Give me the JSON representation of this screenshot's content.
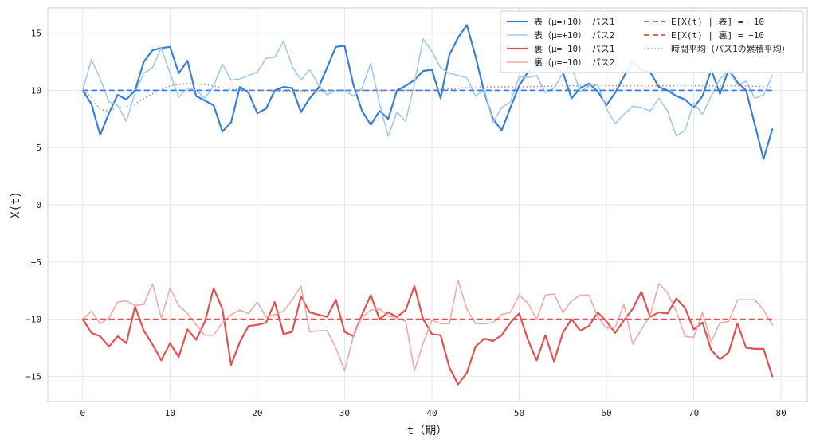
{
  "chart_data": {
    "type": "line",
    "title": "",
    "xlabel": "t（期）",
    "ylabel": "X(t)",
    "xlim": [
      -4,
      83
    ],
    "ylim": [
      -17.2,
      17.2
    ],
    "xticks": [
      0,
      10,
      20,
      30,
      40,
      50,
      60,
      70,
      80
    ],
    "yticks": [
      -15,
      -10,
      -5,
      0,
      5,
      10,
      15
    ],
    "ytick_labels": [
      "−15",
      "−10",
      "−5",
      "0",
      "5",
      "10",
      "15"
    ],
    "grid": true,
    "legend_position": "top-right",
    "series": [
      {
        "name": "表（μ=+10） パス1",
        "color": "#3a7fd5",
        "style": "solid",
        "width": 2.2,
        "x": [
          0,
          1,
          2,
          3,
          4,
          5,
          6,
          7,
          8,
          9,
          10,
          11,
          12,
          13,
          14,
          15,
          16,
          17,
          18,
          19,
          20,
          21,
          22,
          23,
          24,
          25,
          26,
          27,
          28,
          29,
          30,
          31,
          32,
          33,
          34,
          35,
          36,
          37,
          38,
          39,
          40,
          41,
          42,
          43,
          44,
          45,
          46,
          47,
          48,
          49,
          50,
          51,
          52,
          53,
          54,
          55,
          56,
          57,
          58,
          59,
          60,
          61,
          62,
          63,
          64,
          65,
          66,
          67,
          68,
          69,
          70,
          71,
          72,
          73,
          74,
          75,
          76,
          77,
          78,
          79
        ],
        "y": [
          10,
          8.8,
          6.1,
          8,
          9.6,
          9.2,
          10,
          12.5,
          13.5,
          13.7,
          13.8,
          11.5,
          12.6,
          9.5,
          9.1,
          8.7,
          6.4,
          7.2,
          10.3,
          9.8,
          8,
          8.4,
          10,
          10.3,
          10.2,
          8.1,
          9.3,
          10.2,
          12,
          13.8,
          13.9,
          10.5,
          8.2,
          7,
          8.2,
          7.5,
          10,
          10.4,
          10.9,
          11.7,
          11.8,
          9.3,
          13.1,
          14.6,
          15.7,
          13,
          9.8,
          7.5,
          6.5,
          8.5,
          10.4,
          11.6,
          12,
          12.4,
          11.9,
          11.6,
          9.3,
          10.2,
          10.6,
          9.9,
          8.7,
          9.8,
          11.2,
          12.6,
          11.8,
          11.6,
          10.3,
          10,
          9.5,
          9.2,
          8.5,
          9.5,
          11.8,
          9.7,
          11.8,
          10.7,
          10,
          7,
          4,
          6.6
        ]
      },
      {
        "name": "表（μ=+10） パス2",
        "color": "#a6c8ea",
        "style": "solid",
        "width": 1.6,
        "x": [
          0,
          1,
          2,
          3,
          4,
          5,
          6,
          7,
          8,
          9,
          10,
          11,
          12,
          13,
          14,
          15,
          16,
          17,
          18,
          19,
          20,
          21,
          22,
          23,
          24,
          25,
          26,
          27,
          28,
          29,
          30,
          31,
          32,
          33,
          34,
          35,
          36,
          37,
          38,
          39,
          40,
          41,
          42,
          43,
          44,
          45,
          46,
          47,
          48,
          49,
          50,
          51,
          52,
          53,
          54,
          55,
          56,
          57,
          58,
          59,
          60,
          61,
          62,
          63,
          64,
          65,
          66,
          67,
          68,
          69,
          70,
          71,
          72,
          73,
          74,
          75,
          76,
          77,
          78,
          79
        ],
        "y": [
          10,
          12.7,
          11,
          9,
          8.7,
          7.3,
          9.8,
          11.5,
          12,
          13.7,
          11.5,
          9.4,
          10.2,
          10,
          9.3,
          10.4,
          12.3,
          10.9,
          11,
          11.3,
          11.6,
          12.8,
          12.9,
          14.3,
          12.1,
          10.9,
          11.8,
          10.5,
          9.6,
          10,
          10,
          9.5,
          10.2,
          12.4,
          8.8,
          6,
          8.1,
          7.3,
          10.6,
          14.5,
          13.4,
          12,
          11.5,
          11.3,
          11.1,
          9.5,
          10.1,
          7.2,
          8.5,
          9,
          11.2,
          11.1,
          11.3,
          9.8,
          10.2,
          11.5,
          12,
          9.9,
          10.4,
          10.5,
          8.4,
          7.1,
          7.9,
          8.6,
          8.5,
          8.2,
          9.3,
          8.2,
          6,
          6.5,
          8.9,
          7.9,
          9.5,
          11,
          11.7,
          10.5,
          10.8,
          9.3,
          9.6,
          11.3
        ]
      },
      {
        "name": "裏（μ=−10） パス1",
        "color": "#e05252",
        "style": "solid",
        "width": 2.2,
        "x": [
          0,
          1,
          2,
          3,
          4,
          5,
          6,
          7,
          8,
          9,
          10,
          11,
          12,
          13,
          14,
          15,
          16,
          17,
          18,
          19,
          20,
          21,
          22,
          23,
          24,
          25,
          26,
          27,
          28,
          29,
          30,
          31,
          32,
          33,
          34,
          35,
          36,
          37,
          38,
          39,
          40,
          41,
          42,
          43,
          44,
          45,
          46,
          47,
          48,
          49,
          50,
          51,
          52,
          53,
          54,
          55,
          56,
          57,
          58,
          59,
          60,
          61,
          62,
          63,
          64,
          65,
          66,
          67,
          68,
          69,
          70,
          71,
          72,
          73,
          74,
          75,
          76,
          77,
          78,
          79
        ],
        "y": [
          -10,
          -11.2,
          -11.5,
          -12.4,
          -11.5,
          -12.1,
          -8.9,
          -11,
          -12.2,
          -13.6,
          -12.1,
          -13.3,
          -10.9,
          -11.8,
          -10.2,
          -7.3,
          -9.1,
          -14,
          -12,
          -10.6,
          -10.5,
          -10.3,
          -8.5,
          -11.3,
          -11.1,
          -8,
          -9.4,
          -9.6,
          -9.8,
          -8.3,
          -11.1,
          -11.5,
          -9.6,
          -7.9,
          -10,
          -9.4,
          -9.8,
          -9.2,
          -7.1,
          -10,
          -11.3,
          -11.4,
          -14.2,
          -15.7,
          -14.7,
          -12.4,
          -11.7,
          -11.9,
          -11.4,
          -10.3,
          -9.5,
          -11.8,
          -13.6,
          -11.4,
          -13.7,
          -11.2,
          -10,
          -11,
          -10.6,
          -9.4,
          -10.2,
          -11.2,
          -10.1,
          -9.1,
          -7.6,
          -9.8,
          -9.4,
          -9.5,
          -8.2,
          -9,
          -10.9,
          -10.3,
          -12.7,
          -13.5,
          -12.9,
          -10.4,
          -12.5,
          -12.6,
          -12.6,
          -15
        ]
      },
      {
        "name": "裏（μ=−10） パス2",
        "color": "#f0aaaa",
        "style": "solid",
        "width": 1.6,
        "x": [
          0,
          1,
          2,
          3,
          4,
          5,
          6,
          7,
          8,
          9,
          10,
          11,
          12,
          13,
          14,
          15,
          16,
          17,
          18,
          19,
          20,
          21,
          22,
          23,
          24,
          25,
          26,
          27,
          28,
          29,
          30,
          31,
          32,
          33,
          34,
          35,
          36,
          37,
          38,
          39,
          40,
          41,
          42,
          43,
          44,
          45,
          46,
          47,
          48,
          49,
          50,
          51,
          52,
          53,
          54,
          55,
          56,
          57,
          58,
          59,
          60,
          61,
          62,
          63,
          64,
          65,
          66,
          67,
          68,
          69,
          70,
          71,
          72,
          73,
          74,
          75,
          76,
          77,
          78,
          79
        ],
        "y": [
          -10,
          -9.3,
          -10.4,
          -9.9,
          -8.5,
          -8.4,
          -8.8,
          -8.7,
          -6.9,
          -9.9,
          -7.3,
          -8.8,
          -9.5,
          -10.5,
          -11.4,
          -11.4,
          -10.3,
          -9.6,
          -9.2,
          -9.5,
          -8.5,
          -9.8,
          -9.6,
          -9.3,
          -8.3,
          -7.1,
          -11.1,
          -11,
          -11,
          -12.5,
          -14.5,
          -11.5,
          -9.8,
          -9.2,
          -9.1,
          -9.7,
          -9.9,
          -10.2,
          -14.5,
          -12.1,
          -10.1,
          -10.4,
          -10.4,
          -6.6,
          -9.1,
          -10.4,
          -10.4,
          -10.3,
          -9.6,
          -9.4,
          -7.9,
          -8.6,
          -10,
          -7.9,
          -7.8,
          -9.4,
          -8.4,
          -7.9,
          -7.9,
          -9.8,
          -10.8,
          -10.7,
          -8.7,
          -12.2,
          -10.9,
          -9.7,
          -6.9,
          -7.7,
          -9.3,
          -11.5,
          -11.6,
          -9.4,
          -12,
          -10.3,
          -10.2,
          -8.3,
          -8.3,
          -8.3,
          -9.2,
          -10.5
        ]
      },
      {
        "name": "E[X(t) | 表] = +10",
        "color": "#3a7fd5",
        "style": "dashed",
        "width": 1.8,
        "x": [
          0,
          79
        ],
        "y": [
          10,
          10
        ]
      },
      {
        "name": "E[X(t) | 裏] = −10",
        "color": "#e05252",
        "style": "dashed",
        "width": 1.8,
        "x": [
          0,
          79
        ],
        "y": [
          -10,
          -10
        ]
      },
      {
        "name": "時間平均（パス1の累積平均）",
        "color": "#999999",
        "style": "dotted",
        "width": 1.6,
        "x": [
          0,
          1,
          2,
          3,
          4,
          5,
          6,
          7,
          8,
          9,
          10,
          11,
          12,
          13,
          14,
          15,
          16,
          17,
          18,
          19,
          20,
          25,
          30,
          35,
          40,
          45,
          50,
          55,
          60,
          65,
          70,
          75,
          79
        ],
        "y": [
          10,
          9.4,
          8.3,
          8.2,
          8.5,
          8.6,
          8.8,
          9.3,
          9.7,
          10.1,
          10.4,
          10.5,
          10.6,
          10.6,
          10.5,
          10.4,
          10.2,
          10.1,
          10.1,
          10,
          10,
          9.9,
          10,
          10,
          10,
          10.3,
          10.3,
          10.4,
          10.4,
          10.4,
          10.4,
          10.4,
          10.3
        ]
      }
    ]
  }
}
